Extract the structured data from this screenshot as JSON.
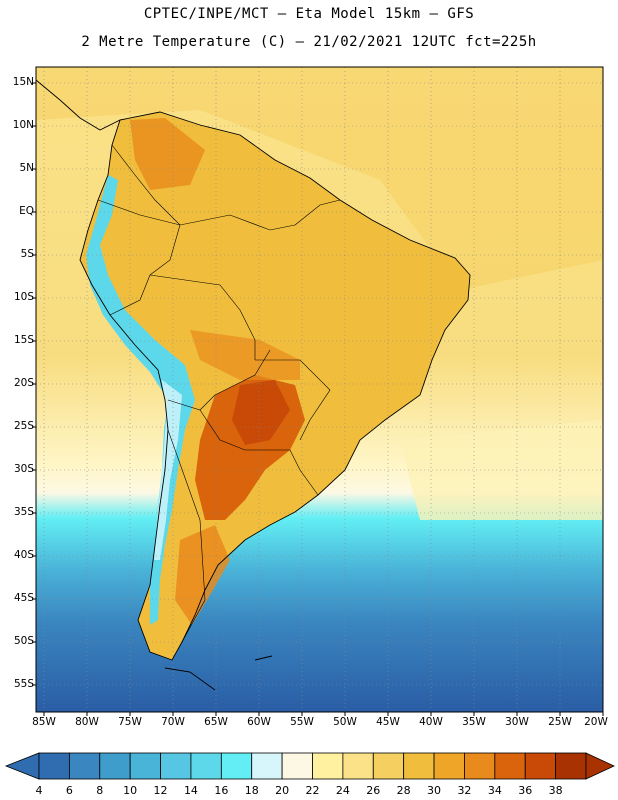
{
  "title_line1": "CPTEC/INPE/MCT –  Eta Model 15km – GFS",
  "title_line2": "2 Metre Temperature (C) – 21/02/2021 12UTC fct=225h",
  "lat_labels": [
    "15N",
    "10N",
    "5N",
    "EQ",
    "5S",
    "10S",
    "15S",
    "20S",
    "25S",
    "30S",
    "35S",
    "40S",
    "45S",
    "50S",
    "55S"
  ],
  "lon_labels": [
    "85W",
    "80W",
    "75W",
    "70W",
    "65W",
    "60W",
    "55W",
    "50W",
    "45W",
    "40W",
    "35W",
    "30W",
    "25W",
    "20W"
  ],
  "colorbar": {
    "labels": [
      "4",
      "6",
      "8",
      "10",
      "12",
      "14",
      "16",
      "18",
      "20",
      "22",
      "24",
      "26",
      "28",
      "30",
      "32",
      "34",
      "36",
      "38"
    ],
    "colors": [
      "#2f6db0",
      "#3a86c0",
      "#3f9dcc",
      "#4ab3d8",
      "#56c6e2",
      "#5dd8ea",
      "#62eef4",
      "#d6f6fb",
      "#fdf8e4",
      "#fff1a0",
      "#fbe288",
      "#f5d060",
      "#f0be3c",
      "#efa628",
      "#e98a1c",
      "#d9640c",
      "#c84a06",
      "#a83202"
    ]
  },
  "colors": {
    "ocean_south_deep": "#2a5da5",
    "ocean_south_mid": "#4ab3d8",
    "ocean_south_light": "#62eef4",
    "ocean_mid": "#fbe288",
    "land_warm": "#f0be3c",
    "land_hot": "#d9640c",
    "andes_cold": "#5dd8ea"
  }
}
